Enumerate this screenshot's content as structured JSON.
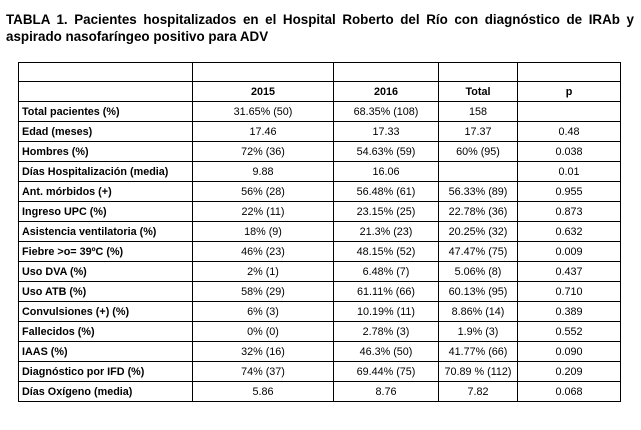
{
  "title": "TABLA 1. Pacientes hospitalizados en el Hospital Roberto del Río con diagnóstico de IRAb y aspirado nasofaríngeo positivo para ADV",
  "table": {
    "headers": [
      "",
      "2015",
      "2016",
      "Total",
      "p"
    ],
    "rows": [
      [
        "Total pacientes (%)",
        "31.65% (50)",
        "68.35% (108)",
        "158",
        ""
      ],
      [
        "Edad (meses)",
        "17.46",
        "17.33",
        "17.37",
        "0.48"
      ],
      [
        "Hombres (%)",
        "72% (36)",
        "54.63% (59)",
        "60% (95)",
        "0.038"
      ],
      [
        "Días Hospitalización (media)",
        "9.88",
        "16.06",
        "",
        "0.01"
      ],
      [
        "Ant. mórbidos (+)",
        "56% (28)",
        "56.48% (61)",
        "56.33% (89)",
        "0.955"
      ],
      [
        "Ingreso UPC (%)",
        "22% (11)",
        "23.15% (25)",
        "22.78% (36)",
        "0.873"
      ],
      [
        "Asistencia ventilatoria (%)",
        "18% (9)",
        "21.3% (23)",
        "20.25% (32)",
        "0.632"
      ],
      [
        "Fiebre >o= 39ºC (%)",
        "46% (23)",
        "48.15% (52)",
        "47.47% (75)",
        "0.009"
      ],
      [
        "Uso DVA (%)",
        "2% (1)",
        "6.48% (7)",
        "5.06% (8)",
        "0.437"
      ],
      [
        "Uso ATB (%)",
        "58% (29)",
        "61.11% (66)",
        "60.13% (95)",
        "0.710"
      ],
      [
        "Convulsiones (+) (%)",
        "6% (3)",
        "10.19% (11)",
        "8.86% (14)",
        "0.389"
      ],
      [
        "Fallecidos (%)",
        "0% (0)",
        "2.78% (3)",
        "1.9% (3)",
        "0.552"
      ],
      [
        "IAAS (%)",
        "32% (16)",
        "46.3% (50)",
        "41.77% (66)",
        "0.090"
      ],
      [
        "Diagnóstico por IFD (%)",
        "74% (37)",
        "69.44% (75)",
        "70.89 % (112)",
        "0.209"
      ],
      [
        "Días Oxígeno (media)",
        "5.86",
        "8.76",
        "7.82",
        "0.068"
      ]
    ]
  }
}
